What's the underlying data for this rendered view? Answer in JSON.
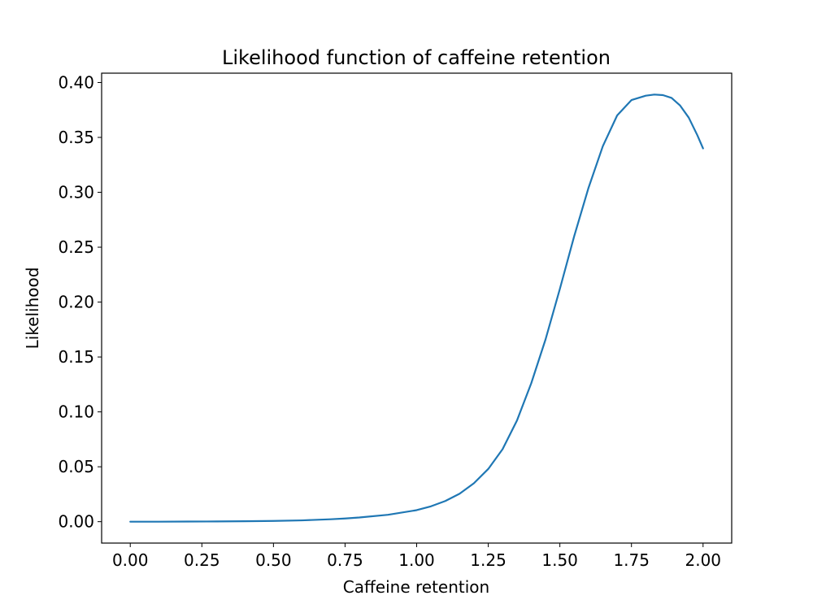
{
  "chart_data": {
    "type": "line",
    "title": "Likelihood function of caffeine retention",
    "xlabel": "Caffeine retention",
    "ylabel": "Likelihood",
    "xlim": [
      -0.1,
      2.1
    ],
    "ylim": [
      -0.0195,
      0.4085
    ],
    "xticks": [
      0.0,
      0.25,
      0.5,
      0.75,
      1.0,
      1.25,
      1.5,
      1.75,
      2.0
    ],
    "xtick_labels": [
      "0.00",
      "0.25",
      "0.50",
      "0.75",
      "1.00",
      "1.25",
      "1.50",
      "1.75",
      "2.00"
    ],
    "yticks": [
      0.0,
      0.05,
      0.1,
      0.15,
      0.2,
      0.25,
      0.3,
      0.35,
      0.4
    ],
    "ytick_labels": [
      "0.00",
      "0.05",
      "0.10",
      "0.15",
      "0.20",
      "0.25",
      "0.30",
      "0.35",
      "0.40"
    ],
    "grid": false,
    "series": [
      {
        "color": "#1f77b4",
        "x": [
          0.0,
          0.1,
          0.2,
          0.3,
          0.4,
          0.5,
          0.6,
          0.7,
          0.75,
          0.8,
          0.9,
          1.0,
          1.05,
          1.1,
          1.15,
          1.2,
          1.25,
          1.3,
          1.35,
          1.4,
          1.45,
          1.5,
          1.55,
          1.6,
          1.65,
          1.7,
          1.75,
          1.8,
          1.83,
          1.86,
          1.89,
          1.92,
          1.95,
          1.98,
          2.0
        ],
        "y": [
          0.0,
          0.0,
          0.0001,
          0.0002,
          0.0004,
          0.0007,
          0.0012,
          0.0022,
          0.0029,
          0.0038,
          0.0063,
          0.0105,
          0.014,
          0.0188,
          0.0255,
          0.035,
          0.048,
          0.066,
          0.092,
          0.126,
          0.166,
          0.212,
          0.26,
          0.304,
          0.342,
          0.37,
          0.384,
          0.388,
          0.389,
          0.3885,
          0.386,
          0.379,
          0.368,
          0.352,
          0.34
        ]
      }
    ]
  }
}
